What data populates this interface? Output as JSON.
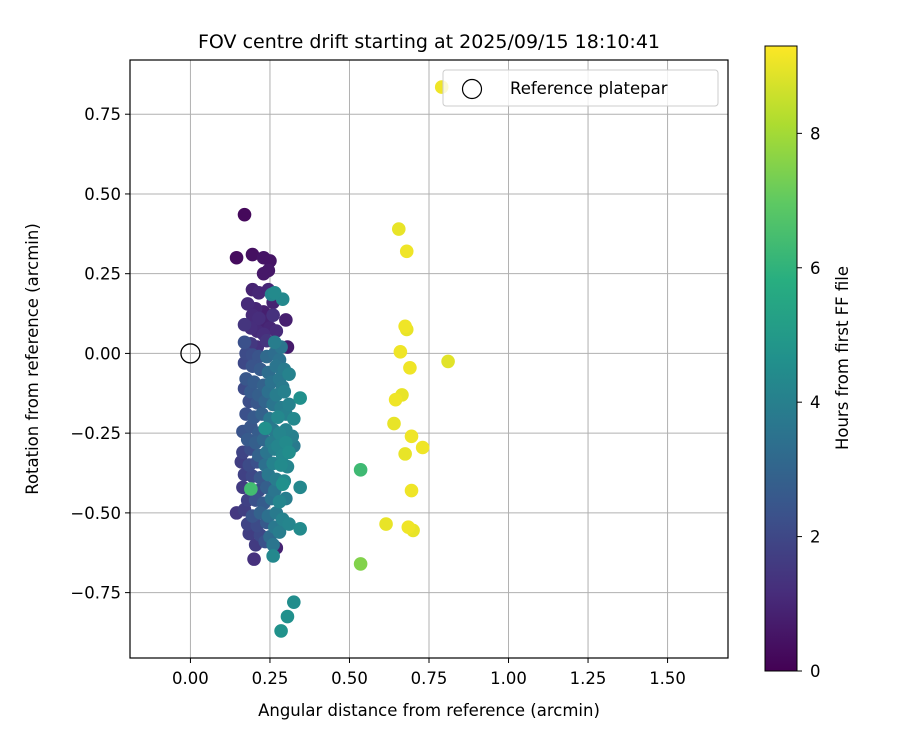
{
  "chart_data": {
    "type": "scatter",
    "title": "FOV centre drift starting at 2025/09/15 18:10:41",
    "xlabel": "Angular distance from reference (arcmin)",
    "ylabel": "Rotation from reference (arcmin)",
    "xlim": [
      -0.19,
      1.69
    ],
    "ylim": [
      -0.955,
      0.92
    ],
    "xticks": [
      0.0,
      0.25,
      0.5,
      0.75,
      1.0,
      1.25,
      1.5
    ],
    "xtick_labels": [
      "0.00",
      "0.25",
      "0.50",
      "0.75",
      "1.00",
      "1.25",
      "1.50"
    ],
    "yticks": [
      0.75,
      0.5,
      0.25,
      0.0,
      -0.25,
      -0.5,
      -0.75
    ],
    "ytick_labels": [
      "0.75",
      "0.50",
      "0.25",
      "0.00",
      "−0.25",
      "−0.50",
      "−0.75"
    ],
    "grid": true,
    "legend": {
      "label": "Reference platepar",
      "placement": "top-right",
      "marker": "open-circle"
    },
    "reference_point": {
      "x": 0.0,
      "y": 0.0
    },
    "colorbar": {
      "label": "Hours from first FF file",
      "range": [
        0,
        9.3
      ],
      "ticks": [
        0,
        2,
        4,
        6,
        8
      ],
      "tick_labels": [
        "0",
        "2",
        "4",
        "6",
        "8"
      ],
      "colormap": "viridis"
    },
    "points": [
      {
        "x": 0.17,
        "y": 0.435,
        "h": 0.2
      },
      {
        "x": 0.145,
        "y": 0.3,
        "h": 0.3
      },
      {
        "x": 0.195,
        "y": 0.31,
        "h": 0.4
      },
      {
        "x": 0.23,
        "y": 0.3,
        "h": 0.5
      },
      {
        "x": 0.25,
        "y": 0.29,
        "h": 0.5
      },
      {
        "x": 0.23,
        "y": 0.25,
        "h": 0.6
      },
      {
        "x": 0.245,
        "y": 0.26,
        "h": 0.6
      },
      {
        "x": 0.195,
        "y": 0.2,
        "h": 0.9
      },
      {
        "x": 0.215,
        "y": 0.19,
        "h": 1.0
      },
      {
        "x": 0.245,
        "y": 0.2,
        "h": 1.0
      },
      {
        "x": 0.18,
        "y": 0.155,
        "h": 1.1
      },
      {
        "x": 0.205,
        "y": 0.14,
        "h": 1.0
      },
      {
        "x": 0.23,
        "y": 0.13,
        "h": 0.8
      },
      {
        "x": 0.26,
        "y": 0.16,
        "h": 0.9
      },
      {
        "x": 0.255,
        "y": 0.185,
        "h": 4.2
      },
      {
        "x": 0.265,
        "y": 0.19,
        "h": 4.4
      },
      {
        "x": 0.29,
        "y": 0.17,
        "h": 4.3
      },
      {
        "x": 0.195,
        "y": 0.12,
        "h": 1.1
      },
      {
        "x": 0.215,
        "y": 0.11,
        "h": 1.2
      },
      {
        "x": 0.235,
        "y": 0.1,
        "h": 0.9
      },
      {
        "x": 0.26,
        "y": 0.12,
        "h": 1.3
      },
      {
        "x": 0.3,
        "y": 0.105,
        "h": 0.8
      },
      {
        "x": 0.17,
        "y": 0.09,
        "h": 1.4
      },
      {
        "x": 0.19,
        "y": 0.08,
        "h": 1.2
      },
      {
        "x": 0.21,
        "y": 0.07,
        "h": 1.1
      },
      {
        "x": 0.23,
        "y": 0.06,
        "h": 1.2
      },
      {
        "x": 0.25,
        "y": 0.08,
        "h": 1.0
      },
      {
        "x": 0.27,
        "y": 0.07,
        "h": 1.1
      },
      {
        "x": 0.17,
        "y": 0.035,
        "h": 2.3
      },
      {
        "x": 0.19,
        "y": 0.03,
        "h": 1.5
      },
      {
        "x": 0.21,
        "y": 0.02,
        "h": 1.3
      },
      {
        "x": 0.24,
        "y": 0.04,
        "h": 1.4
      },
      {
        "x": 0.265,
        "y": 0.035,
        "h": 3.9
      },
      {
        "x": 0.285,
        "y": 0.02,
        "h": 3.6
      },
      {
        "x": 0.305,
        "y": 0.02,
        "h": 0.7
      },
      {
        "x": 0.175,
        "y": 0.0,
        "h": 2.1
      },
      {
        "x": 0.195,
        "y": -0.005,
        "h": 2.2
      },
      {
        "x": 0.215,
        "y": -0.01,
        "h": 2.4
      },
      {
        "x": 0.24,
        "y": -0.01,
        "h": 3.2
      },
      {
        "x": 0.265,
        "y": 0.0,
        "h": 3.3
      },
      {
        "x": 0.28,
        "y": -0.02,
        "h": 3.5
      },
      {
        "x": 0.17,
        "y": -0.03,
        "h": 2.0
      },
      {
        "x": 0.195,
        "y": -0.04,
        "h": 2.4
      },
      {
        "x": 0.22,
        "y": -0.05,
        "h": 2.6
      },
      {
        "x": 0.245,
        "y": -0.06,
        "h": 3.3
      },
      {
        "x": 0.27,
        "y": -0.04,
        "h": 3.6
      },
      {
        "x": 0.295,
        "y": -0.05,
        "h": 3.8
      },
      {
        "x": 0.31,
        "y": -0.065,
        "h": 4.1
      },
      {
        "x": 0.175,
        "y": -0.08,
        "h": 2.5
      },
      {
        "x": 0.2,
        "y": -0.09,
        "h": 2.7
      },
      {
        "x": 0.23,
        "y": -0.1,
        "h": 2.9
      },
      {
        "x": 0.255,
        "y": -0.09,
        "h": 3.5
      },
      {
        "x": 0.28,
        "y": -0.08,
        "h": 3.7
      },
      {
        "x": 0.29,
        "y": -0.105,
        "h": 3.8
      },
      {
        "x": 0.17,
        "y": -0.11,
        "h": 2.1
      },
      {
        "x": 0.19,
        "y": -0.12,
        "h": 2.6
      },
      {
        "x": 0.215,
        "y": -0.13,
        "h": 2.8
      },
      {
        "x": 0.245,
        "y": -0.12,
        "h": 3.4
      },
      {
        "x": 0.27,
        "y": -0.13,
        "h": 3.9
      },
      {
        "x": 0.295,
        "y": -0.12,
        "h": 4.0
      },
      {
        "x": 0.345,
        "y": -0.14,
        "h": 4.6
      },
      {
        "x": 0.185,
        "y": -0.15,
        "h": 2.2
      },
      {
        "x": 0.21,
        "y": -0.155,
        "h": 2.5
      },
      {
        "x": 0.235,
        "y": -0.15,
        "h": 3.0
      },
      {
        "x": 0.26,
        "y": -0.16,
        "h": 3.6
      },
      {
        "x": 0.285,
        "y": -0.17,
        "h": 3.9
      },
      {
        "x": 0.31,
        "y": -0.16,
        "h": 4.1
      },
      {
        "x": 0.175,
        "y": -0.19,
        "h": 2.3
      },
      {
        "x": 0.2,
        "y": -0.2,
        "h": 2.6
      },
      {
        "x": 0.225,
        "y": -0.19,
        "h": 2.9
      },
      {
        "x": 0.25,
        "y": -0.205,
        "h": 3.7
      },
      {
        "x": 0.275,
        "y": -0.2,
        "h": 4.3
      },
      {
        "x": 0.3,
        "y": -0.19,
        "h": 4.0
      },
      {
        "x": 0.325,
        "y": -0.205,
        "h": 4.3
      },
      {
        "x": 0.165,
        "y": -0.245,
        "h": 2.4
      },
      {
        "x": 0.19,
        "y": -0.23,
        "h": 2.5
      },
      {
        "x": 0.215,
        "y": -0.25,
        "h": 2.7
      },
      {
        "x": 0.235,
        "y": -0.235,
        "h": 4.6
      },
      {
        "x": 0.26,
        "y": -0.24,
        "h": 3.8
      },
      {
        "x": 0.28,
        "y": -0.25,
        "h": 4.2
      },
      {
        "x": 0.3,
        "y": -0.24,
        "h": 4.1
      },
      {
        "x": 0.32,
        "y": -0.26,
        "h": 4.0
      },
      {
        "x": 0.18,
        "y": -0.27,
        "h": 2.6
      },
      {
        "x": 0.205,
        "y": -0.28,
        "h": 2.8
      },
      {
        "x": 0.23,
        "y": -0.27,
        "h": 3.1
      },
      {
        "x": 0.255,
        "y": -0.28,
        "h": 3.9
      },
      {
        "x": 0.275,
        "y": -0.29,
        "h": 4.2
      },
      {
        "x": 0.3,
        "y": -0.28,
        "h": 4.4
      },
      {
        "x": 0.325,
        "y": -0.29,
        "h": 3.8
      },
      {
        "x": 0.165,
        "y": -0.31,
        "h": 1.9
      },
      {
        "x": 0.19,
        "y": -0.3,
        "h": 2.2
      },
      {
        "x": 0.215,
        "y": -0.32,
        "h": 2.9
      },
      {
        "x": 0.24,
        "y": -0.31,
        "h": 3.6
      },
      {
        "x": 0.265,
        "y": -0.3,
        "h": 4.0
      },
      {
        "x": 0.29,
        "y": -0.32,
        "h": 4.3
      },
      {
        "x": 0.31,
        "y": -0.31,
        "h": 4.5
      },
      {
        "x": 0.16,
        "y": -0.34,
        "h": 1.7
      },
      {
        "x": 0.185,
        "y": -0.35,
        "h": 2.1
      },
      {
        "x": 0.21,
        "y": -0.34,
        "h": 2.3
      },
      {
        "x": 0.235,
        "y": -0.35,
        "h": 3.4
      },
      {
        "x": 0.26,
        "y": -0.345,
        "h": 4.1
      },
      {
        "x": 0.285,
        "y": -0.35,
        "h": 4.4
      },
      {
        "x": 0.305,
        "y": -0.355,
        "h": 4.2
      },
      {
        "x": 0.17,
        "y": -0.38,
        "h": 1.8
      },
      {
        "x": 0.195,
        "y": -0.385,
        "h": 2.0
      },
      {
        "x": 0.22,
        "y": -0.39,
        "h": 2.5
      },
      {
        "x": 0.245,
        "y": -0.38,
        "h": 3.7
      },
      {
        "x": 0.27,
        "y": -0.395,
        "h": 3.9
      },
      {
        "x": 0.295,
        "y": -0.4,
        "h": 4.3
      },
      {
        "x": 0.165,
        "y": -0.42,
        "h": 1.6
      },
      {
        "x": 0.19,
        "y": -0.425,
        "h": 6.4
      },
      {
        "x": 0.215,
        "y": -0.43,
        "h": 2.2
      },
      {
        "x": 0.24,
        "y": -0.42,
        "h": 2.8
      },
      {
        "x": 0.265,
        "y": -0.43,
        "h": 3.6
      },
      {
        "x": 0.29,
        "y": -0.41,
        "h": 4.6
      },
      {
        "x": 0.345,
        "y": -0.42,
        "h": 4.3
      },
      {
        "x": 0.18,
        "y": -0.46,
        "h": 1.8
      },
      {
        "x": 0.205,
        "y": -0.46,
        "h": 2.3
      },
      {
        "x": 0.23,
        "y": -0.47,
        "h": 2.7
      },
      {
        "x": 0.255,
        "y": -0.455,
        "h": 3.5
      },
      {
        "x": 0.28,
        "y": -0.465,
        "h": 4.2
      },
      {
        "x": 0.3,
        "y": -0.455,
        "h": 3.9
      },
      {
        "x": 0.145,
        "y": -0.5,
        "h": 1.5
      },
      {
        "x": 0.17,
        "y": -0.49,
        "h": 1.7
      },
      {
        "x": 0.195,
        "y": -0.51,
        "h": 2.4
      },
      {
        "x": 0.22,
        "y": -0.5,
        "h": 2.9
      },
      {
        "x": 0.245,
        "y": -0.51,
        "h": 3.4
      },
      {
        "x": 0.27,
        "y": -0.5,
        "h": 3.8
      },
      {
        "x": 0.29,
        "y": -0.52,
        "h": 4.1
      },
      {
        "x": 0.18,
        "y": -0.535,
        "h": 1.9
      },
      {
        "x": 0.21,
        "y": -0.54,
        "h": 2.1
      },
      {
        "x": 0.24,
        "y": -0.53,
        "h": 2.6
      },
      {
        "x": 0.265,
        "y": -0.545,
        "h": 3.7
      },
      {
        "x": 0.31,
        "y": -0.535,
        "h": 4.2
      },
      {
        "x": 0.345,
        "y": -0.55,
        "h": 4.4
      },
      {
        "x": 0.185,
        "y": -0.565,
        "h": 1.7
      },
      {
        "x": 0.22,
        "y": -0.57,
        "h": 2.0
      },
      {
        "x": 0.25,
        "y": -0.575,
        "h": 3.2
      },
      {
        "x": 0.28,
        "y": -0.56,
        "h": 3.9
      },
      {
        "x": 0.205,
        "y": -0.6,
        "h": 1.6
      },
      {
        "x": 0.235,
        "y": -0.59,
        "h": 2.3
      },
      {
        "x": 0.26,
        "y": -0.6,
        "h": 3.6
      },
      {
        "x": 0.27,
        "y": -0.61,
        "h": 0.9
      },
      {
        "x": 0.2,
        "y": -0.645,
        "h": 1.3
      },
      {
        "x": 0.26,
        "y": -0.635,
        "h": 4.3
      },
      {
        "x": 0.325,
        "y": -0.78,
        "h": 4.5
      },
      {
        "x": 0.305,
        "y": -0.825,
        "h": 4.6
      },
      {
        "x": 0.285,
        "y": -0.87,
        "h": 4.7
      },
      {
        "x": 0.535,
        "y": -0.365,
        "h": 6.3
      },
      {
        "x": 0.535,
        "y": -0.66,
        "h": 7.5
      },
      {
        "x": 0.655,
        "y": 0.39,
        "h": 9.0
      },
      {
        "x": 0.68,
        "y": 0.32,
        "h": 9.1
      },
      {
        "x": 0.675,
        "y": 0.085,
        "h": 9.1
      },
      {
        "x": 0.68,
        "y": 0.075,
        "h": 9.0
      },
      {
        "x": 0.66,
        "y": 0.005,
        "h": 9.1
      },
      {
        "x": 0.81,
        "y": -0.025,
        "h": 8.9
      },
      {
        "x": 0.69,
        "y": -0.045,
        "h": 9.1
      },
      {
        "x": 0.665,
        "y": -0.13,
        "h": 9.0
      },
      {
        "x": 0.645,
        "y": -0.145,
        "h": 9.1
      },
      {
        "x": 0.64,
        "y": -0.22,
        "h": 9.0
      },
      {
        "x": 0.695,
        "y": -0.26,
        "h": 9.1
      },
      {
        "x": 0.73,
        "y": -0.295,
        "h": 9.1
      },
      {
        "x": 0.675,
        "y": -0.315,
        "h": 9.0
      },
      {
        "x": 0.695,
        "y": -0.43,
        "h": 9.1
      },
      {
        "x": 0.615,
        "y": -0.535,
        "h": 9.0
      },
      {
        "x": 0.685,
        "y": -0.545,
        "h": 9.1
      },
      {
        "x": 0.7,
        "y": -0.555,
        "h": 9.0
      },
      {
        "x": 0.79,
        "y": 0.835,
        "h": 9.1
      }
    ]
  }
}
